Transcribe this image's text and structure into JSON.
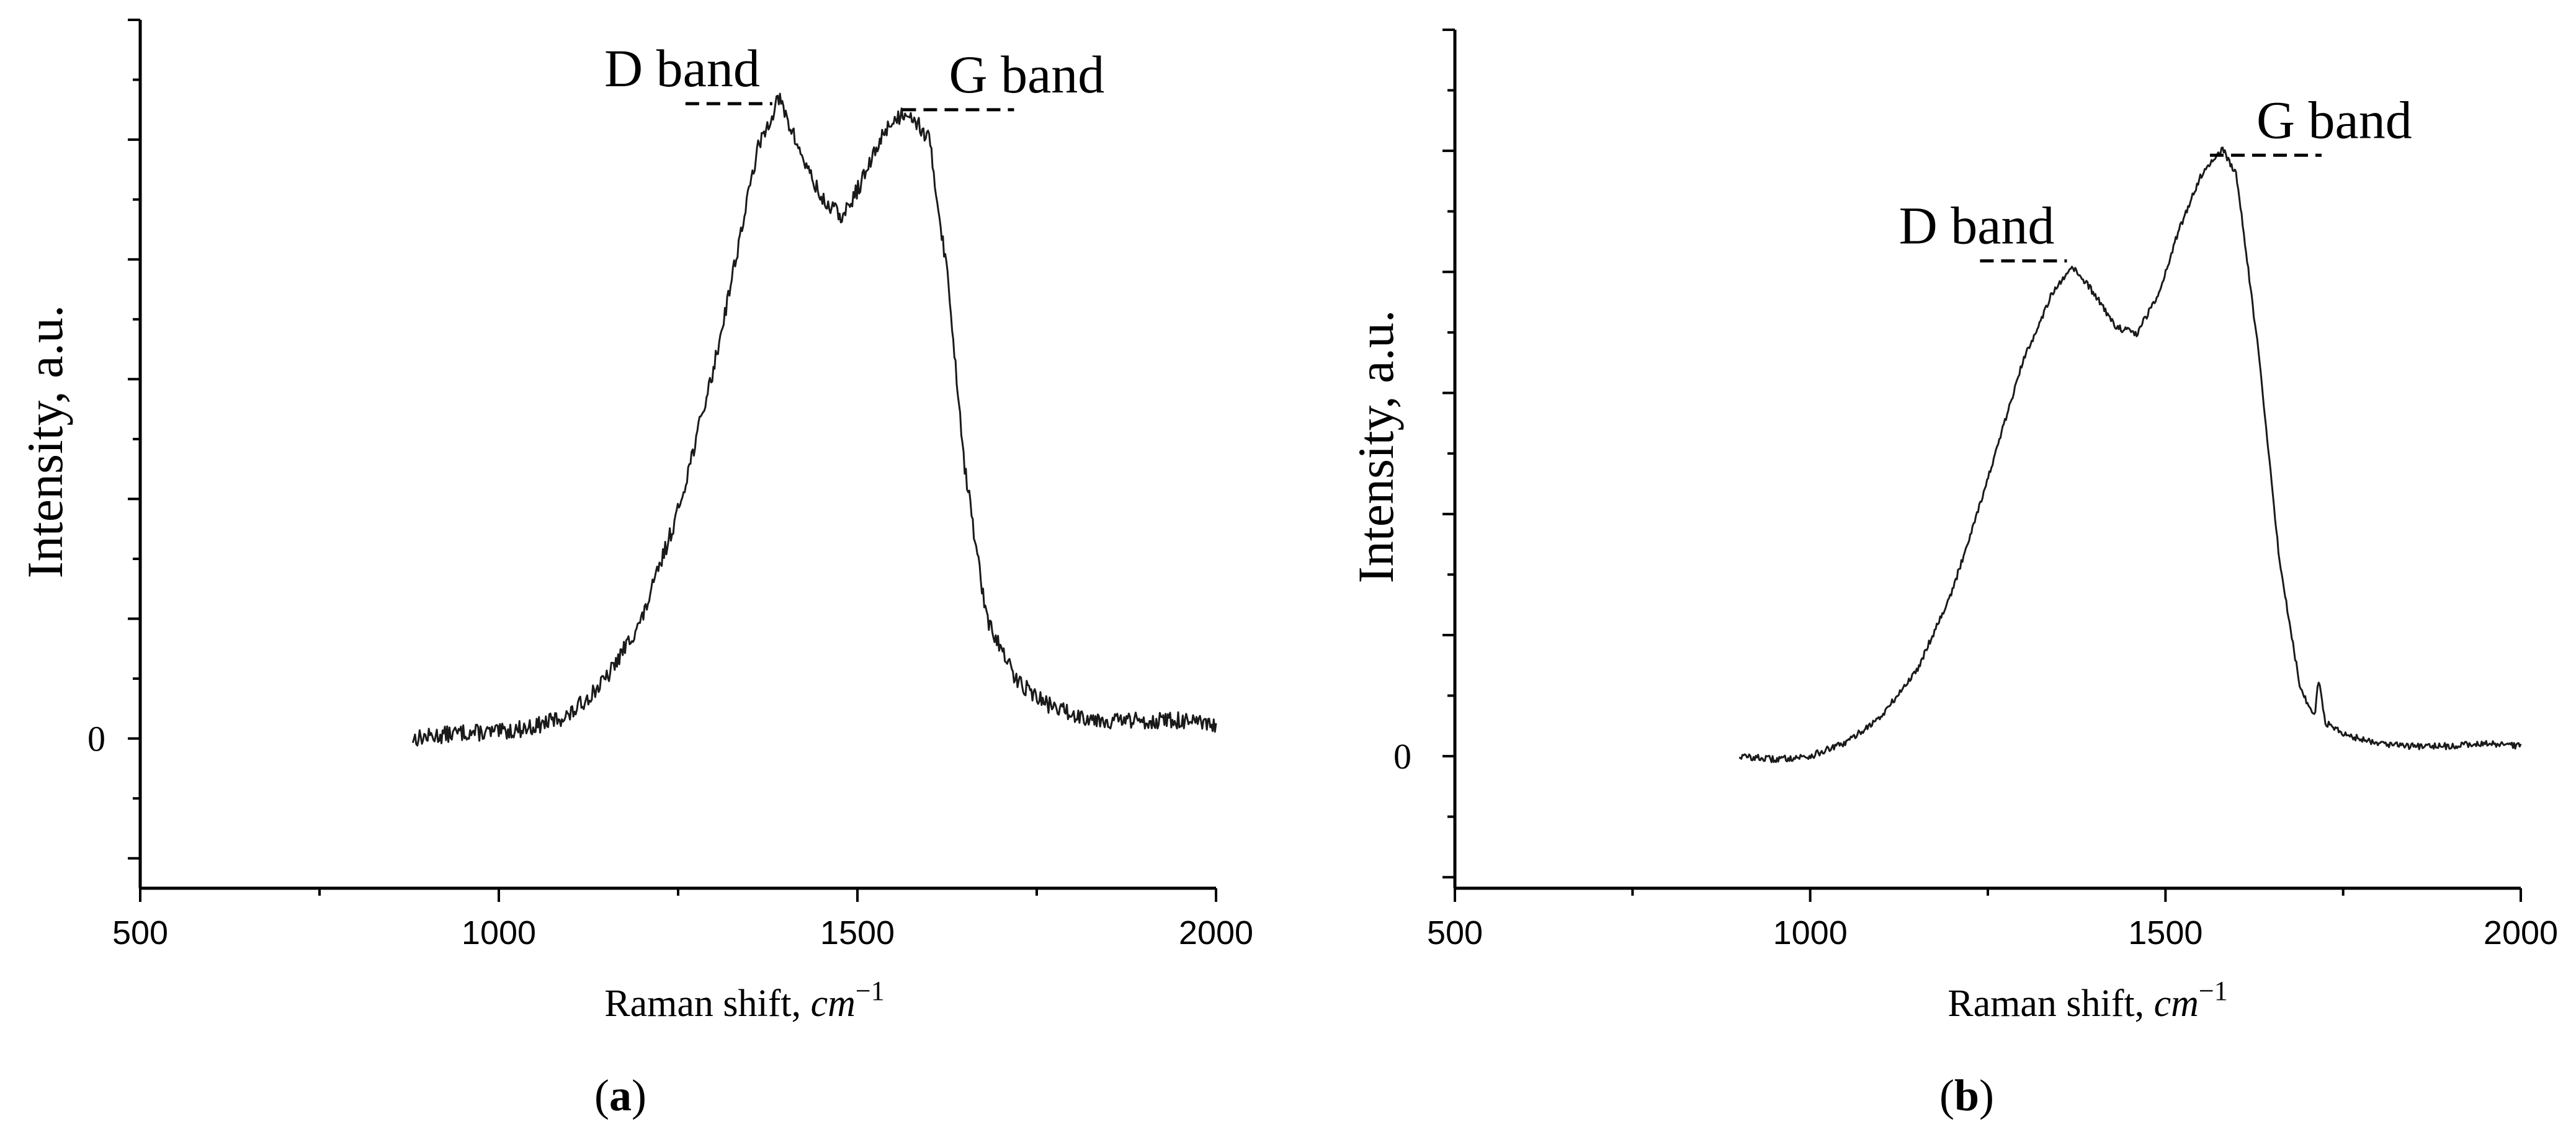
{
  "chart_data": [
    {
      "panel_label_open": "(",
      "panel_label": "a",
      "panel_label_close": ")",
      "type": "line",
      "xlabel_text": "Raman shift, ",
      "xlabel_unit": "cm",
      "xlabel_sup": "−1",
      "ylabel": "Intensity, a.u.",
      "xlim": [
        500,
        2000
      ],
      "ylim": [
        -0.25,
        1.2
      ],
      "xticks": [
        500,
        1000,
        1500,
        2000
      ],
      "xtick_labels": [
        "500",
        "1000",
        "1500",
        "2000"
      ],
      "ytick_zero_label": "0",
      "ytick_major_count": 7,
      "series": [
        {
          "x": [
            880,
            950,
            1000,
            1050,
            1100,
            1150,
            1200,
            1250,
            1300,
            1330,
            1360,
            1390,
            1420,
            1450,
            1480,
            1510,
            1540,
            1570,
            1600,
            1625,
            1650,
            1680,
            1720,
            1760,
            1800,
            1850,
            1900,
            1950,
            2000
          ],
          "y": [
            0.0,
            0.01,
            0.01,
            0.02,
            0.04,
            0.1,
            0.2,
            0.38,
            0.62,
            0.8,
            0.98,
            1.07,
            0.98,
            0.9,
            0.87,
            0.94,
            1.02,
            1.05,
            1.0,
            0.78,
            0.45,
            0.2,
            0.1,
            0.06,
            0.04,
            0.03,
            0.03,
            0.03,
            0.02
          ],
          "noise": 0.014
        }
      ],
      "annotations": [
        {
          "text": "D band",
          "x": 1390,
          "y": 1.06,
          "side": "left"
        },
        {
          "text": "G band",
          "x": 1580,
          "y": 1.05,
          "side": "right"
        }
      ]
    },
    {
      "panel_label_open": "(",
      "panel_label": "b",
      "panel_label_close": ")",
      "type": "line",
      "xlabel_text": "Raman shift, ",
      "xlabel_unit": "cm",
      "xlabel_sup": "−1",
      "ylabel": "Intensity, a.u.",
      "xlim": [
        500,
        2000
      ],
      "ylim": [
        -0.2,
        1.1
      ],
      "xticks": [
        500,
        1000,
        1500,
        2000
      ],
      "xtick_labels": [
        "500",
        "1000",
        "1500",
        "2000"
      ],
      "ytick_zero_label": "0",
      "ytick_major_count": 7,
      "series": [
        {
          "x": [
            900,
            950,
            1000,
            1050,
            1100,
            1150,
            1200,
            1250,
            1300,
            1340,
            1370,
            1400,
            1430,
            1460,
            1490,
            1520,
            1550,
            1580,
            1600,
            1630,
            1660,
            1690,
            1710,
            1715,
            1725,
            1760,
            1800,
            1850,
            1900,
            1950,
            2000
          ],
          "y": [
            0.0,
            -0.005,
            0.0,
            0.02,
            0.06,
            0.13,
            0.25,
            0.42,
            0.6,
            0.7,
            0.74,
            0.7,
            0.65,
            0.64,
            0.7,
            0.8,
            0.88,
            0.92,
            0.88,
            0.62,
            0.3,
            0.1,
            0.06,
            0.12,
            0.05,
            0.03,
            0.02,
            0.015,
            0.015,
            0.02,
            0.015
          ],
          "noise": 0.005
        }
      ],
      "annotations": [
        {
          "text": "D band",
          "x": 1370,
          "y": 0.75,
          "side": "left"
        },
        {
          "text": "G band",
          "x": 1580,
          "y": 0.91,
          "side": "right"
        }
      ]
    }
  ]
}
